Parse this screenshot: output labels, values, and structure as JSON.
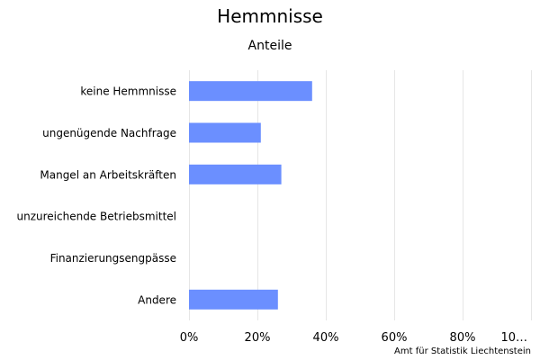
{
  "chart_data": {
    "type": "bar",
    "orientation": "horizontal",
    "title": "Hemmnisse",
    "subtitle": "Anteile",
    "categories": [
      "keine Hemmnisse",
      "ungenügende Nachfrage",
      "Mangel an Arbeitskräften",
      "unzureichende Betriebsmittel",
      "Finanzierungsengpässe",
      "Andere"
    ],
    "values": [
      36,
      21,
      27,
      0,
      0,
      26
    ],
    "x_ticks": [
      "0%",
      "20%",
      "40%",
      "60%",
      "80%",
      "10…"
    ],
    "xlim": [
      0,
      100
    ],
    "grid": true,
    "bar_color": "#6b8fff",
    "grid_color": "#e6e6e6"
  },
  "credits": "Amt für Statistik Liechtenstein"
}
